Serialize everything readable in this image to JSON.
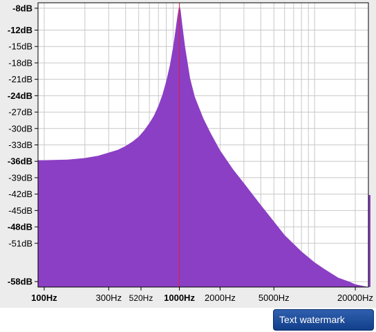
{
  "chart_data": {
    "type": "area",
    "x_scale": "log",
    "xlim": [
      90,
      25000
    ],
    "ylim": [
      -59,
      -7
    ],
    "grid": true,
    "y_ticks": [
      {
        "v": -8,
        "label": "-8dB",
        "bold": true
      },
      {
        "v": -12,
        "label": "-12dB",
        "bold": true
      },
      {
        "v": -15,
        "label": "-15dB",
        "bold": false
      },
      {
        "v": -18,
        "label": "-18dB",
        "bold": false
      },
      {
        "v": -21,
        "label": "-21dB",
        "bold": false
      },
      {
        "v": -24,
        "label": "-24dB",
        "bold": true
      },
      {
        "v": -27,
        "label": "-27dB",
        "bold": false
      },
      {
        "v": -30,
        "label": "-30dB",
        "bold": false
      },
      {
        "v": -33,
        "label": "-33dB",
        "bold": false
      },
      {
        "v": -36,
        "label": "-36dB",
        "bold": true
      },
      {
        "v": -39,
        "label": "-39dB",
        "bold": false
      },
      {
        "v": -42,
        "label": "-42dB",
        "bold": false
      },
      {
        "v": -45,
        "label": "-45dB",
        "bold": false
      },
      {
        "v": -48,
        "label": "-48dB",
        "bold": true
      },
      {
        "v": -51,
        "label": "-51dB",
        "bold": false
      },
      {
        "v": -58,
        "label": "-58dB",
        "bold": true
      }
    ],
    "x_ticks": [
      {
        "v": 100,
        "label": "100Hz",
        "bold": true
      },
      {
        "v": 300,
        "label": "300Hz",
        "bold": false
      },
      {
        "v": 520,
        "label": "520Hz",
        "bold": false
      },
      {
        "v": 1000,
        "label": "1000Hz",
        "bold": true
      },
      {
        "v": 2000,
        "label": "2000Hz",
        "bold": false
      },
      {
        "v": 5000,
        "label": "5000Hz",
        "bold": false
      },
      {
        "v": 20000,
        "label": "20000Hz",
        "bold": false
      }
    ],
    "series": [
      {
        "color": "#8b3fc4",
        "points": [
          [
            90,
            -35.8
          ],
          [
            100,
            -35.8
          ],
          [
            150,
            -35.7
          ],
          [
            200,
            -35.4
          ],
          [
            250,
            -35.0
          ],
          [
            300,
            -34.4
          ],
          [
            350,
            -33.9
          ],
          [
            400,
            -33.2
          ],
          [
            450,
            -32.4
          ],
          [
            500,
            -31.5
          ],
          [
            550,
            -30.3
          ],
          [
            600,
            -29.0
          ],
          [
            650,
            -27.6
          ],
          [
            700,
            -25.8
          ],
          [
            750,
            -23.8
          ],
          [
            800,
            -21.3
          ],
          [
            850,
            -18.5
          ],
          [
            900,
            -15.0
          ],
          [
            930,
            -12.5
          ],
          [
            960,
            -10.0
          ],
          [
            985,
            -8.2
          ],
          [
            1000,
            -7.5
          ],
          [
            1020,
            -8.3
          ],
          [
            1050,
            -11.0
          ],
          [
            1100,
            -15.0
          ],
          [
            1200,
            -20.8
          ],
          [
            1300,
            -24.2
          ],
          [
            1500,
            -28.1
          ],
          [
            1700,
            -30.8
          ],
          [
            2000,
            -34.0
          ],
          [
            2500,
            -37.5
          ],
          [
            3000,
            -40.0
          ],
          [
            4000,
            -44.0
          ],
          [
            5000,
            -47.0
          ],
          [
            6000,
            -49.5
          ],
          [
            8000,
            -52.5
          ],
          [
            10000,
            -54.5
          ],
          [
            12000,
            -55.8
          ],
          [
            15000,
            -57.3
          ],
          [
            18000,
            -58.0
          ],
          [
            20000,
            -58.5
          ],
          [
            25000,
            -59
          ]
        ]
      }
    ],
    "marker_x": 1000,
    "marker_color": "#e0203a"
  },
  "watermark_text": "Text watermark"
}
